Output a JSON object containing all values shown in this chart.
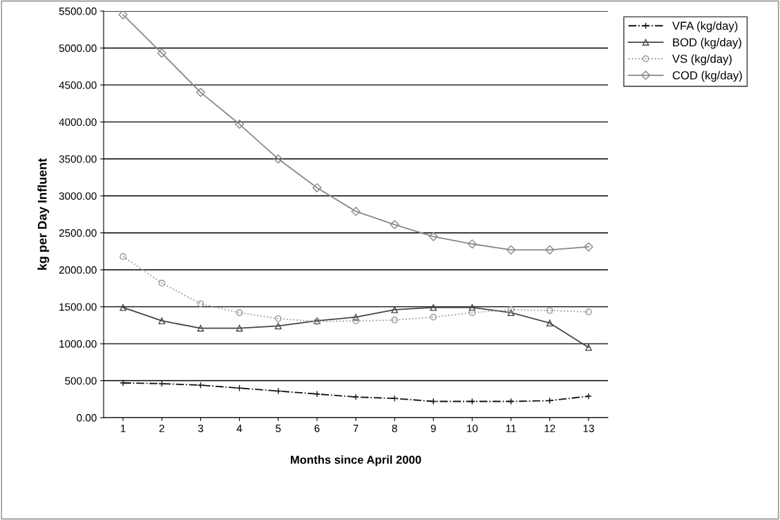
{
  "chart_data": {
    "type": "line",
    "xlabel": "Months since April 2000",
    "ylabel": "kg per Day Influent",
    "categories": [
      "1",
      "2",
      "3",
      "4",
      "5",
      "6",
      "7",
      "8",
      "9",
      "10",
      "11",
      "12",
      "13"
    ],
    "ylim": [
      0,
      5500
    ],
    "yticks": [
      {
        "value": 0,
        "label": "0.00"
      },
      {
        "value": 500,
        "label": "500.00"
      },
      {
        "value": 1000,
        "label": "1000.00"
      },
      {
        "value": 1500,
        "label": "1500.00"
      },
      {
        "value": 2000,
        "label": "2000.00"
      },
      {
        "value": 2500,
        "label": "2500.00"
      },
      {
        "value": 3000,
        "label": "3000.00"
      },
      {
        "value": 3500,
        "label": "3500.00"
      },
      {
        "value": 4000,
        "label": "4000.00"
      },
      {
        "value": 4500,
        "label": "4500.00"
      },
      {
        "value": 5000,
        "label": "5000.00"
      },
      {
        "value": 5500,
        "label": "5500.00"
      }
    ],
    "grid": "y",
    "legend": "right",
    "series": [
      {
        "name": "VFA (kg/day)",
        "color": "#111111",
        "marker": "cross",
        "line_style": "dashdot",
        "values": [
          470,
          460,
          440,
          400,
          360,
          320,
          280,
          260,
          220,
          220,
          220,
          230,
          290
        ]
      },
      {
        "name": "BOD (kg/day)",
        "color": "#444444",
        "marker": "triangle",
        "line_style": "solid",
        "values": [
          1490,
          1310,
          1210,
          1210,
          1240,
          1310,
          1360,
          1460,
          1490,
          1490,
          1420,
          1280,
          950
        ]
      },
      {
        "name": "VS (kg/day)",
        "color": "#999999",
        "marker": "circle",
        "line_style": "dotted",
        "values": [
          2180,
          1820,
          1540,
          1420,
          1340,
          1300,
          1310,
          1320,
          1360,
          1420,
          1460,
          1450,
          1430
        ]
      },
      {
        "name": "COD (kg/day)",
        "color": "#888888",
        "marker": "diamond",
        "line_style": "solid",
        "values": [
          5450,
          4930,
          4400,
          3970,
          3500,
          3110,
          2790,
          2610,
          2450,
          2350,
          2270,
          2270,
          2310
        ]
      }
    ]
  }
}
